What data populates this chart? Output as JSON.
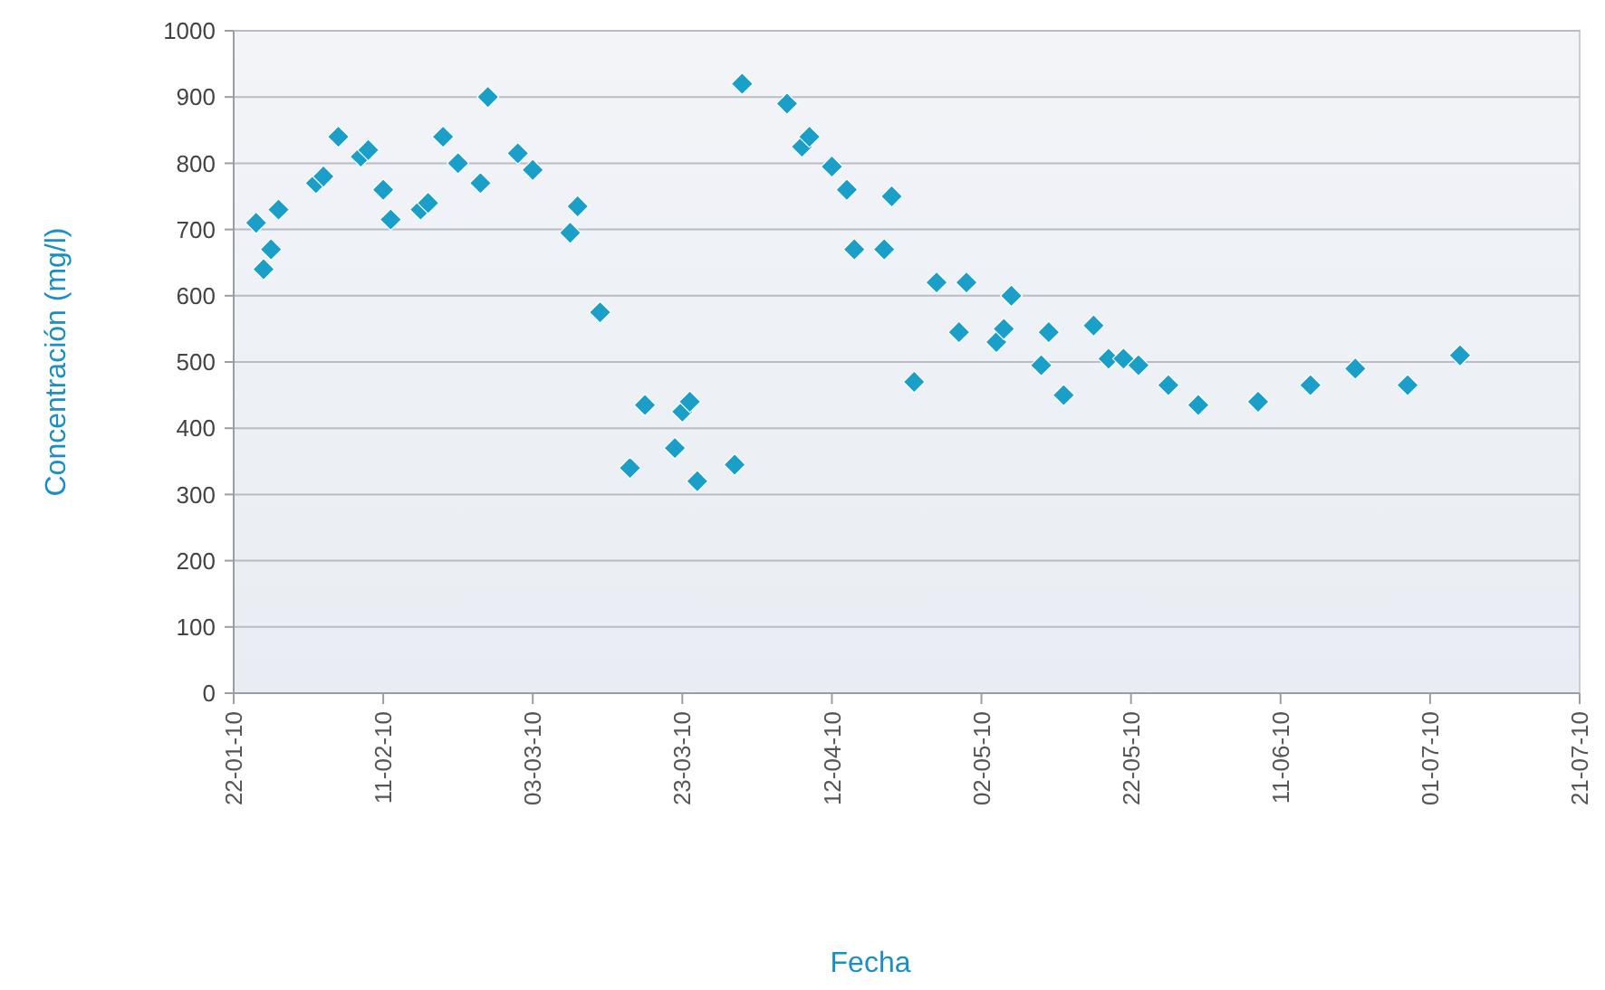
{
  "chart_data": {
    "type": "scatter",
    "xlabel": "Fecha",
    "ylabel": "Concentración (mg/l)",
    "x": [
      "2010-01-25",
      "2010-01-26",
      "2010-01-27",
      "2010-01-28",
      "2010-02-02",
      "2010-02-03",
      "2010-02-05",
      "2010-02-08",
      "2010-02-09",
      "2010-02-11",
      "2010-02-12",
      "2010-02-16",
      "2010-02-17",
      "2010-02-19",
      "2010-02-21",
      "2010-02-24",
      "2010-02-25",
      "2010-03-01",
      "2010-03-03",
      "2010-03-08",
      "2010-03-09",
      "2010-03-12",
      "2010-03-16",
      "2010-03-18",
      "2010-03-22",
      "2010-03-23",
      "2010-03-24",
      "2010-03-25",
      "2010-03-30",
      "2010-03-31",
      "2010-04-06",
      "2010-04-08",
      "2010-04-09",
      "2010-04-12",
      "2010-04-14",
      "2010-04-15",
      "2010-04-19",
      "2010-04-20",
      "2010-04-23",
      "2010-04-26",
      "2010-04-30",
      "2010-04-29",
      "2010-05-04",
      "2010-05-05",
      "2010-05-06",
      "2010-05-10",
      "2010-05-11",
      "2010-05-13",
      "2010-05-17",
      "2010-05-19",
      "2010-05-21",
      "2010-05-23",
      "2010-05-27",
      "2010-05-31",
      "2010-06-08",
      "2010-06-15",
      "2010-06-21",
      "2010-06-28",
      "2010-07-05"
    ],
    "series": [
      {
        "color": "#1a9fc9",
        "values": [
          710,
          640,
          670,
          730,
          770,
          780,
          840,
          810,
          820,
          760,
          715,
          730,
          740,
          840,
          800,
          770,
          900,
          815,
          790,
          695,
          735,
          575,
          340,
          435,
          370,
          425,
          440,
          320,
          345,
          920,
          890,
          825,
          840,
          795,
          760,
          670,
          670,
          750,
          470,
          620,
          620,
          545,
          530,
          550,
          600,
          495,
          545,
          450,
          555,
          505,
          505,
          495,
          465,
          435,
          440,
          465,
          490,
          465,
          510
        ]
      }
    ],
    "xlim": [
      "2010-01-22",
      "2010-07-21"
    ],
    "xticks": [
      {
        "value": "2010-01-22",
        "label": "22-01-10"
      },
      {
        "value": "2010-02-11",
        "label": "11-02-10"
      },
      {
        "value": "2010-03-03",
        "label": "03-03-10"
      },
      {
        "value": "2010-03-23",
        "label": "23-03-10"
      },
      {
        "value": "2010-04-12",
        "label": "12-04-10"
      },
      {
        "value": "2010-05-02",
        "label": "02-05-10"
      },
      {
        "value": "2010-05-22",
        "label": "22-05-10"
      },
      {
        "value": "2010-06-11",
        "label": "11-06-10"
      },
      {
        "value": "2010-07-01",
        "label": "01-07-10"
      },
      {
        "value": "2010-07-21",
        "label": "21-07-10"
      }
    ],
    "ylim": [
      0,
      1000
    ],
    "yticks": [
      0,
      100,
      200,
      300,
      400,
      500,
      600,
      700,
      800,
      900,
      1000
    ],
    "grid": "y",
    "marker": "diamond"
  }
}
